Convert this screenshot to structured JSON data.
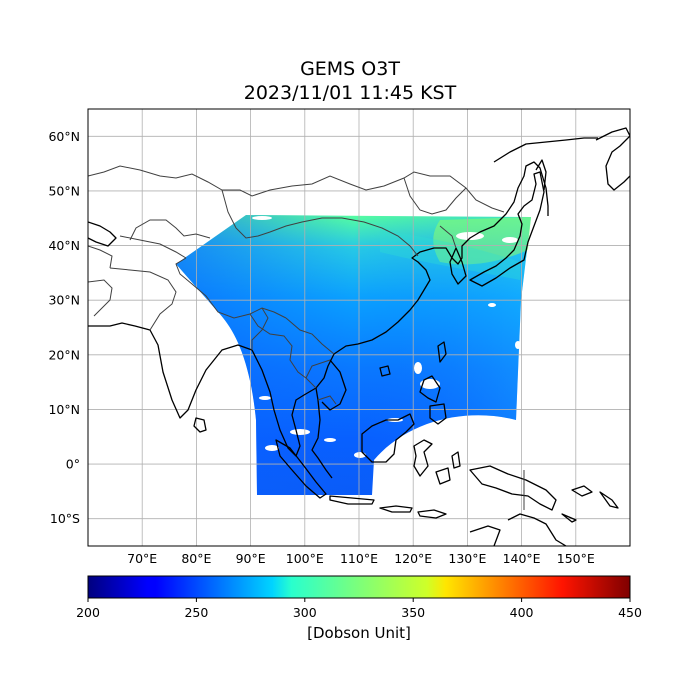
{
  "title": {
    "line1": "GEMS O3T",
    "line2": "2023/11/01 11:45 KST"
  },
  "map": {
    "projection": "PlateCarree",
    "lon_range": [
      60,
      160
    ],
    "lat_range": [
      -15,
      65
    ],
    "gridlines": true,
    "lat_ticks": [
      {
        "value": 60,
        "label": "60°N"
      },
      {
        "value": 50,
        "label": "50°N"
      },
      {
        "value": 40,
        "label": "40°N"
      },
      {
        "value": 30,
        "label": "30°N"
      },
      {
        "value": 20,
        "label": "20°N"
      },
      {
        "value": 10,
        "label": "10°N"
      },
      {
        "value": 0,
        "label": "0°"
      },
      {
        "value": -10,
        "label": "10°S"
      }
    ],
    "lon_ticks": [
      {
        "value": 70,
        "label": "70°E"
      },
      {
        "value": 80,
        "label": "80°E"
      },
      {
        "value": 90,
        "label": "90°E"
      },
      {
        "value": 100,
        "label": "100°E"
      },
      {
        "value": 110,
        "label": "110°E"
      },
      {
        "value": 120,
        "label": "120°E"
      },
      {
        "value": 130,
        "label": "130°E"
      },
      {
        "value": 140,
        "label": "140°E"
      },
      {
        "value": 150,
        "label": "150°E"
      }
    ],
    "colormap": "jet"
  },
  "colorbar": {
    "min": 200,
    "max": 450,
    "ticks": [
      "200",
      "250",
      "300",
      "350",
      "400",
      "450"
    ],
    "label": "[Dobson Unit]"
  }
}
